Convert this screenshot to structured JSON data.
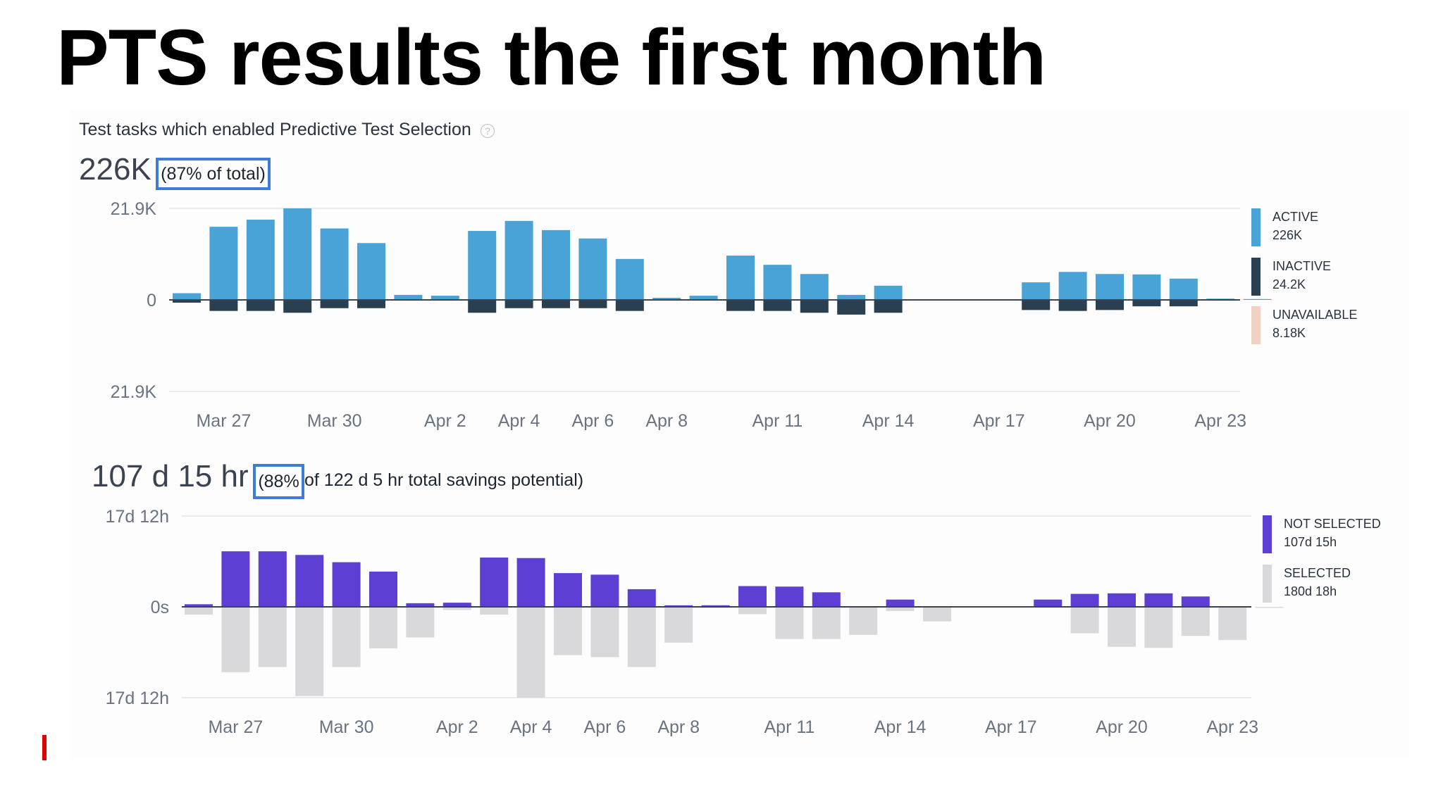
{
  "slide": {
    "title": "PTS results the first month"
  },
  "chart1": {
    "subtitle": "Test tasks which enabled Predictive Test Selection",
    "big_value": "226K",
    "highlight": "(87% of total)"
  },
  "chart2": {
    "big_value": "107 d 15 hr",
    "highlight": "(88%",
    "suffix": "of 122 d 5 hr total savings potential)"
  },
  "icons": {
    "help": "help-circle-icon"
  },
  "colors": {
    "active": "#4aa3d6",
    "inactive": "#2a3f4f",
    "unavailable": "#f0d2c2",
    "not_selected": "#5e3fd3",
    "selected": "#d9d9dc",
    "highlight_box": "#3f7bd8",
    "red_mark": "#e00000"
  },
  "chart_data": [
    {
      "type": "bar",
      "subtitle": "Test tasks which enabled Predictive Test Selection",
      "ylim": [
        -21900,
        21900
      ],
      "y_ticks": [
        "21.9K",
        "0",
        "21.9K"
      ],
      "x_tick_labels": [
        "Mar 27",
        "Mar 30",
        "Apr 2",
        "Apr 4",
        "Apr 6",
        "Apr 8",
        "Apr 11",
        "Apr 14",
        "Apr 17",
        "Apr 20",
        "Apr 23"
      ],
      "x_tick_index": [
        1,
        4,
        7,
        9,
        11,
        13,
        16,
        19,
        22,
        25,
        28
      ],
      "series": [
        {
          "name": "ACTIVE",
          "total": "226K",
          "values": [
            1600,
            17500,
            19200,
            21900,
            17100,
            13600,
            1200,
            1000,
            16500,
            18900,
            16700,
            14700,
            9800,
            500,
            1000,
            10600,
            8400,
            6200,
            1200,
            3400,
            0,
            0,
            0,
            4200,
            6700,
            6200,
            6100,
            5100,
            300,
            200
          ]
        },
        {
          "name": "INACTIVE",
          "total": "24.2K",
          "values": [
            300,
            1200,
            1200,
            1400,
            900,
            900,
            0,
            0,
            1400,
            900,
            900,
            900,
            1200,
            0,
            0,
            1200,
            1200,
            1400,
            1600,
            1400,
            0,
            0,
            0,
            1100,
            1200,
            1100,
            700,
            700,
            0,
            0
          ]
        },
        {
          "name": "UNAVAILABLE",
          "total": "8.18K",
          "values": [
            0,
            0,
            0,
            0,
            0,
            0,
            0,
            0,
            0,
            0,
            0,
            0,
            0,
            0,
            0,
            0,
            0,
            0,
            0,
            0,
            0,
            0,
            0,
            0,
            0,
            0,
            0,
            0,
            0,
            0
          ]
        }
      ]
    },
    {
      "type": "bar",
      "ylim": [
        "-17d 12h",
        "17d 12h"
      ],
      "y_ticks": [
        "17d 12h",
        "0s",
        "17d 12h"
      ],
      "x_tick_labels": [
        "Mar 27",
        "Mar 30",
        "Apr 2",
        "Apr 4",
        "Apr 6",
        "Apr 8",
        "Apr 11",
        "Apr 14",
        "Apr 17",
        "Apr 20",
        "Apr 23"
      ],
      "x_tick_index": [
        1,
        4,
        7,
        9,
        11,
        13,
        16,
        19,
        22,
        25,
        28
      ],
      "series": [
        {
          "name": "NOT SELECTED",
          "total": "107d 15h",
          "values_days": [
            0.5,
            10.7,
            10.7,
            10.0,
            8.6,
            6.8,
            0.7,
            0.8,
            9.5,
            9.4,
            6.5,
            6.2,
            3.4,
            0.3,
            0.3,
            4.0,
            3.9,
            2.8,
            0,
            1.4,
            0,
            0,
            0,
            1.4,
            2.5,
            2.6,
            2.6,
            2.0,
            0,
            0
          ]
        },
        {
          "name": "SELECTED",
          "total": "180d 18h",
          "values_days": [
            1.5,
            12.6,
            11.6,
            17.2,
            11.6,
            8.0,
            5.9,
            0.6,
            1.5,
            17.5,
            9.3,
            9.7,
            11.6,
            6.9,
            0.2,
            1.4,
            6.2,
            6.2,
            5.4,
            0.8,
            2.8,
            0,
            0,
            0,
            5.1,
            7.7,
            7.9,
            5.6,
            6.4,
            0.2
          ]
        }
      ]
    }
  ]
}
